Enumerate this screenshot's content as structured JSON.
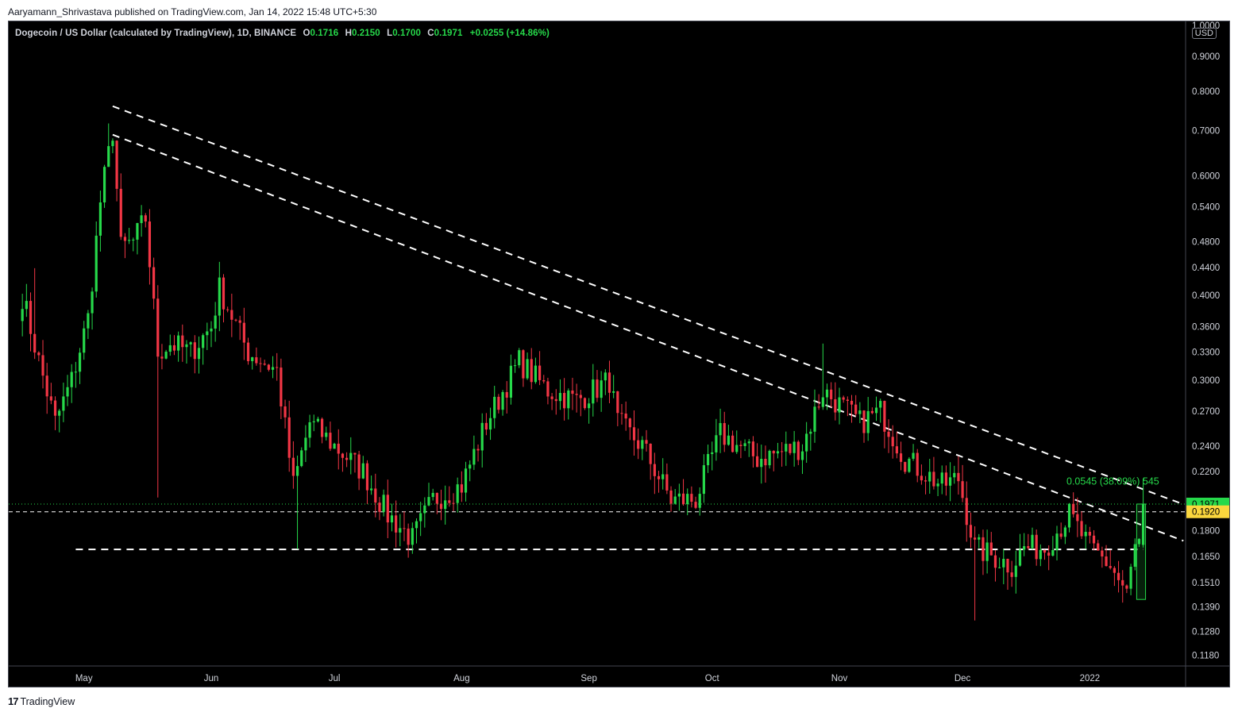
{
  "publisher_line": "Aaryamann_Shrivastava published on TradingView.com, Jan 14, 2022 15:48 UTC+5:30",
  "header": {
    "symbol": "Dogecoin / US Dollar (calculated by TradingView), 1D, BINANCE",
    "open_key": "O",
    "open": "0.1716",
    "high_key": "H",
    "high": "0.2150",
    "low_key": "L",
    "low": "0.1700",
    "close_key": "C",
    "close": "0.1971",
    "change": "+0.0255 (+14.86%)"
  },
  "currency": "USD",
  "footer_brand": "TradingView",
  "footer_logo": "17",
  "colors": {
    "up": "#26d94a",
    "down": "#f23645",
    "background": "#000000",
    "grid": "#000000",
    "last_price_tag": "#26d94a",
    "level_tag": "#fbd73d"
  },
  "chart_data": {
    "type": "candlestick",
    "scale": "log",
    "ylim": [
      0.11,
      1.0
    ],
    "y_ticks": [
      "0.9000",
      "0.8000",
      "0.7000",
      "0.6000",
      "0.5400",
      "0.4800",
      "0.4400",
      "0.4000",
      "0.3600",
      "0.3300",
      "0.3000",
      "0.2700",
      "0.2400",
      "0.2200",
      "0.1800",
      "0.1650",
      "0.1510",
      "0.1390",
      "0.1280",
      "0.1180"
    ],
    "y_top_partial": "1.0000",
    "x_labels": [
      "May",
      "Jun",
      "Jul",
      "Aug",
      "Sep",
      "Oct",
      "Nov",
      "Dec",
      "2022"
    ],
    "price_tags": [
      {
        "value": 0.1971,
        "label": "0.1971",
        "color": "#26d94a"
      },
      {
        "value": 0.192,
        "label": "0.1920",
        "color": "#fbd73d"
      }
    ],
    "measure_label": "0.0545 (38.09%) 545",
    "trendlines": [
      {
        "style": "dashed",
        "from": [
          "2021-05-08",
          0.76
        ],
        "to": [
          "2022-01-16",
          0.197
        ],
        "note": "upper descending resistance"
      },
      {
        "style": "dashed",
        "from": [
          "2021-05-08",
          0.69
        ],
        "to": [
          "2022-01-18",
          0.174
        ],
        "note": "lower descending resistance"
      },
      {
        "style": "dashed",
        "from": [
          "2021-04-29",
          0.169
        ],
        "to": [
          "2022-01-14",
          0.169
        ],
        "note": "horizontal support"
      }
    ],
    "anchors": [
      {
        "date": "2021-04-16",
        "close": 0.4
      },
      {
        "date": "2021-04-20",
        "close": 0.32
      },
      {
        "date": "2021-04-24",
        "close": 0.26
      },
      {
        "date": "2021-04-28",
        "close": 0.3
      },
      {
        "date": "2021-05-02",
        "close": 0.37
      },
      {
        "date": "2021-05-05",
        "close": 0.55
      },
      {
        "date": "2021-05-08",
        "close": 0.7
      },
      {
        "date": "2021-05-10",
        "close": 0.47
      },
      {
        "date": "2021-05-13",
        "close": 0.48
      },
      {
        "date": "2021-05-16",
        "close": 0.52
      },
      {
        "date": "2021-05-19",
        "close": 0.33
      },
      {
        "date": "2021-05-22",
        "close": 0.34
      },
      {
        "date": "2021-05-27",
        "close": 0.33
      },
      {
        "date": "2021-06-01",
        "close": 0.36
      },
      {
        "date": "2021-06-03",
        "close": 0.41
      },
      {
        "date": "2021-06-10",
        "close": 0.33
      },
      {
        "date": "2021-06-17",
        "close": 0.31
      },
      {
        "date": "2021-06-21",
        "close": 0.21
      },
      {
        "date": "2021-06-25",
        "close": 0.26
      },
      {
        "date": "2021-07-01",
        "close": 0.24
      },
      {
        "date": "2021-07-08",
        "close": 0.22
      },
      {
        "date": "2021-07-14",
        "close": 0.19
      },
      {
        "date": "2021-07-20",
        "close": 0.175
      },
      {
        "date": "2021-07-25",
        "close": 0.2
      },
      {
        "date": "2021-08-01",
        "close": 0.21
      },
      {
        "date": "2021-08-07",
        "close": 0.26
      },
      {
        "date": "2021-08-15",
        "close": 0.32
      },
      {
        "date": "2021-08-22",
        "close": 0.29
      },
      {
        "date": "2021-08-29",
        "close": 0.28
      },
      {
        "date": "2021-09-06",
        "close": 0.3
      },
      {
        "date": "2021-09-08",
        "close": 0.26
      },
      {
        "date": "2021-09-14",
        "close": 0.24
      },
      {
        "date": "2021-09-21",
        "close": 0.2
      },
      {
        "date": "2021-09-27",
        "close": 0.2
      },
      {
        "date": "2021-10-03",
        "close": 0.25
      },
      {
        "date": "2021-10-12",
        "close": 0.23
      },
      {
        "date": "2021-10-23",
        "close": 0.24
      },
      {
        "date": "2021-10-28",
        "close": 0.29
      },
      {
        "date": "2021-11-06",
        "close": 0.26
      },
      {
        "date": "2021-11-11",
        "close": 0.27
      },
      {
        "date": "2021-11-17",
        "close": 0.23
      },
      {
        "date": "2021-11-26",
        "close": 0.21
      },
      {
        "date": "2021-11-30",
        "close": 0.215
      },
      {
        "date": "2021-12-04",
        "close": 0.17
      },
      {
        "date": "2021-12-13",
        "close": 0.16
      },
      {
        "date": "2021-12-16",
        "close": 0.17
      },
      {
        "date": "2021-12-21",
        "close": 0.17
      },
      {
        "date": "2021-12-27",
        "close": 0.19
      },
      {
        "date": "2022-01-01",
        "close": 0.17
      },
      {
        "date": "2022-01-06",
        "close": 0.16
      },
      {
        "date": "2022-01-10",
        "close": 0.145
      },
      {
        "date": "2022-01-12",
        "close": 0.17
      },
      {
        "date": "2022-01-13",
        "close": 0.1716
      },
      {
        "date": "2022-01-14",
        "close": 0.1971
      }
    ]
  }
}
